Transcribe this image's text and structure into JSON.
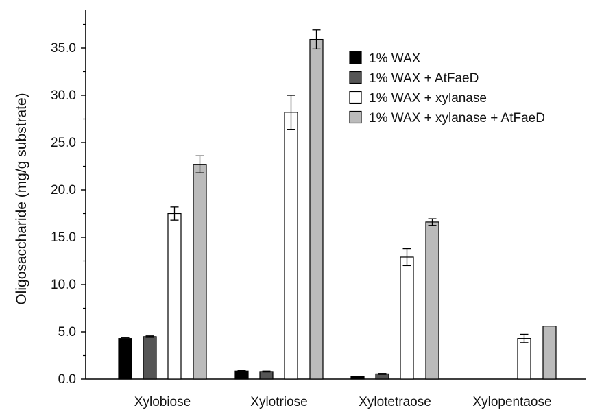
{
  "chart_data": {
    "type": "bar",
    "ylabel": "Oligosaccharide (mg/g substrate)",
    "xlabel": "",
    "ylim": [
      0,
      38
    ],
    "yticks": [
      "0.0",
      "5.0",
      "10.0",
      "15.0",
      "20.0",
      "25.0",
      "30.0",
      "35.0"
    ],
    "ytick_values": [
      0,
      5,
      10,
      15,
      20,
      25,
      30,
      35
    ],
    "categories": [
      "Xylobiose",
      "Xylotriose",
      "Xylotetraose",
      "Xylopentaose"
    ],
    "legend_position": "top-right",
    "grid": false,
    "series": [
      {
        "name": "1% WAX",
        "color": "#000000",
        "values": [
          4.3,
          0.85,
          0.25,
          null
        ],
        "errors": [
          0.1,
          0.05,
          0.05,
          null
        ]
      },
      {
        "name": "1% WAX + AtFaeD",
        "color": "#555555",
        "values": [
          4.5,
          0.8,
          0.55,
          null
        ],
        "errors": [
          0.08,
          0.05,
          0.05,
          null
        ]
      },
      {
        "name": "1% WAX + xylanase",
        "color": "#ffffff",
        "values": [
          17.5,
          28.2,
          12.9,
          4.3
        ],
        "errors": [
          0.7,
          1.8,
          0.9,
          0.45
        ]
      },
      {
        "name": "1% WAX + xylanase + AtFaeD",
        "color": "#bbbbbb",
        "values": [
          22.7,
          35.9,
          16.6,
          5.6
        ],
        "errors": [
          0.9,
          1.0,
          0.35,
          0.0
        ]
      }
    ]
  }
}
